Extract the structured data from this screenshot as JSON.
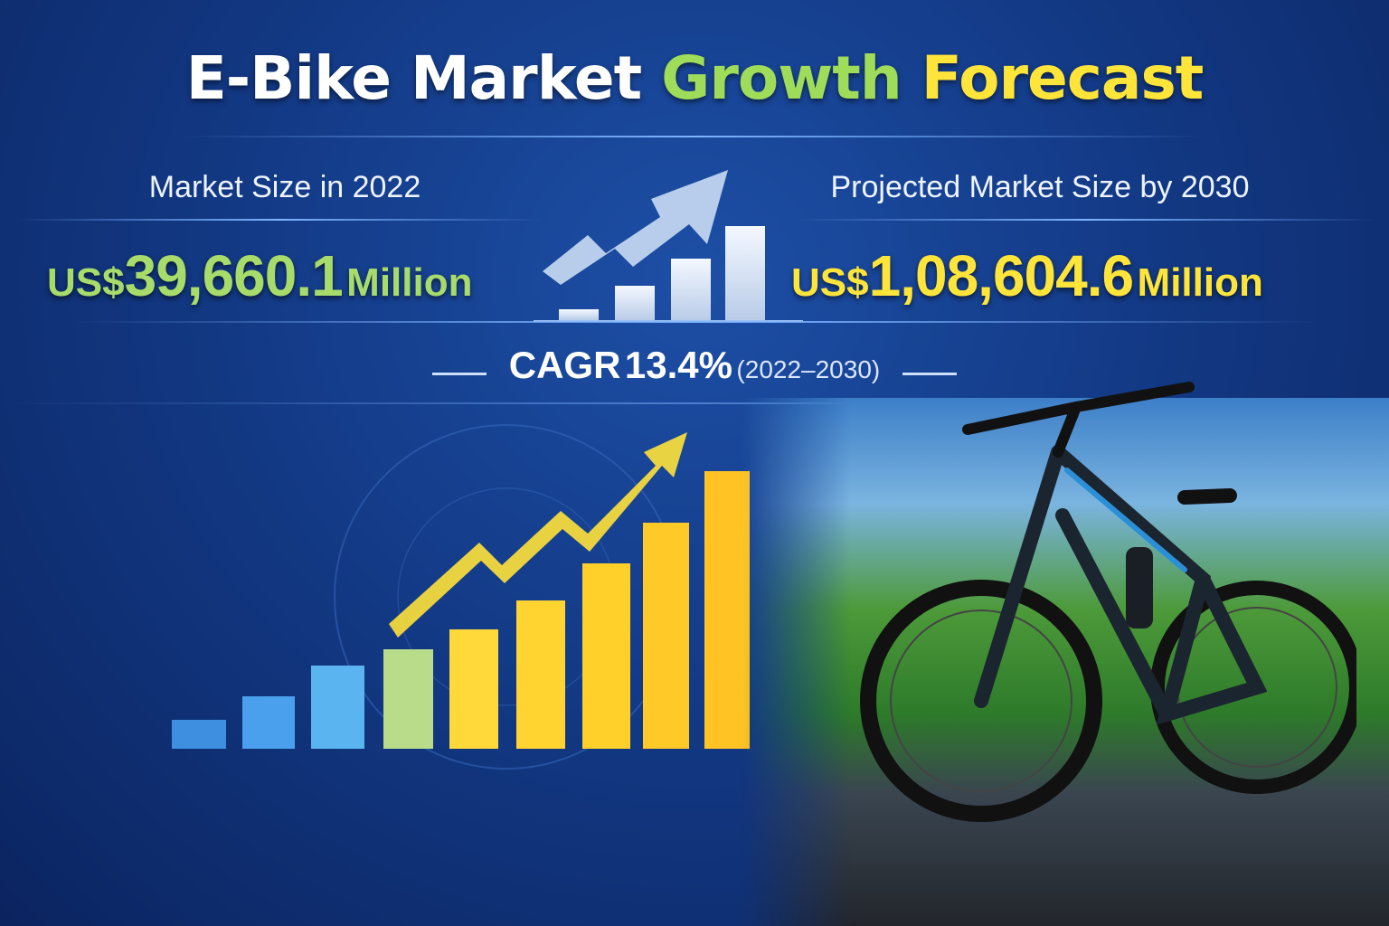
{
  "title": {
    "part1": "E-Bike Market",
    "part2": "Growth",
    "part3": "Forecast"
  },
  "left": {
    "label": "Market Size in 2022",
    "currency": "US$",
    "value": "39,660.1",
    "unit": "Million"
  },
  "right": {
    "label": "Projected Market Size by 2030",
    "currency": "US$",
    "value": "1,08,604.6",
    "unit": "Million"
  },
  "cagr": {
    "label": "CAGR",
    "value": "13.4%",
    "period": "(2022–2030)"
  },
  "colors": {
    "green": "#9fdc5a",
    "yellow": "#ffe53a",
    "background": "#133a86"
  },
  "icons": [
    "growth-chart-icon",
    "trend-arrow-icon",
    "e-bike-illustration"
  ]
}
